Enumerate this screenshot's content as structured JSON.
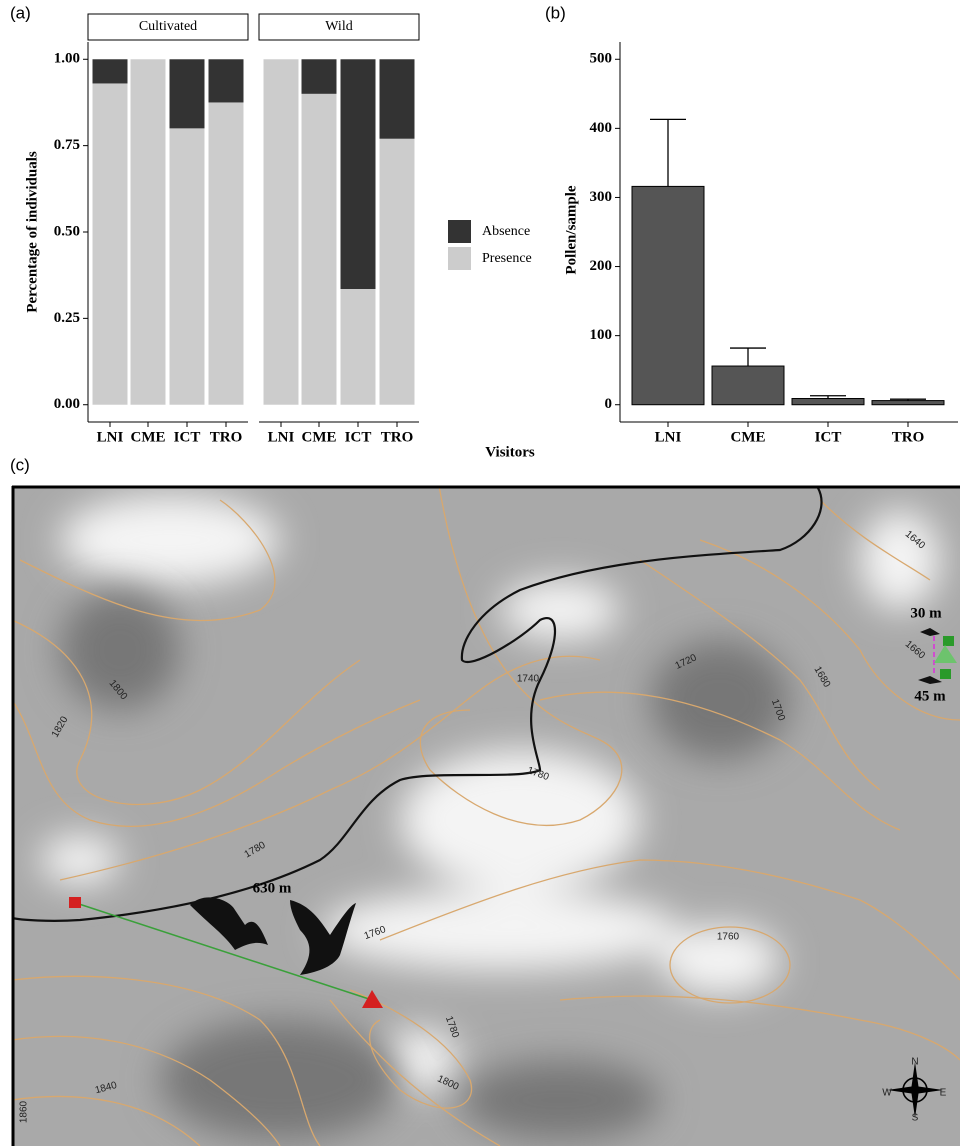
{
  "chart_data": [
    {
      "type": "stacked-bar",
      "panel_label": "(a)",
      "facets": [
        "Cultivated",
        "Wild"
      ],
      "categories": [
        [
          "LNI",
          "CME",
          "ICT",
          "TRO"
        ],
        [
          "LNI",
          "CME",
          "ICT",
          "TRO"
        ]
      ],
      "y_label": "Percentage of individuals",
      "x_label": "Visitors",
      "series": [
        {
          "name": "Absence",
          "color": "#333333",
          "values": [
            [
              0.07,
              0,
              0.2,
              0.125
            ],
            [
              0,
              0.1,
              0.665,
              0.23
            ]
          ]
        },
        {
          "name": "Presence",
          "color": "#cccccc",
          "values": [
            [
              0.93,
              1,
              0.8,
              0.875
            ],
            [
              1,
              0.9,
              0.335,
              0.77
            ]
          ]
        }
      ],
      "ylim": [
        -0.05,
        1.05
      ],
      "yticks": [
        {
          "value": 0,
          "label": "0.00"
        },
        {
          "value": 0.25,
          "label": "0.25"
        },
        {
          "value": 0.5,
          "label": "0.50"
        },
        {
          "value": 0.75,
          "label": "0.75"
        },
        {
          "value": 1,
          "label": "1.00"
        }
      ]
    },
    {
      "type": "bar",
      "panel_label": "(b)",
      "y_label": "Pollen/sample",
      "categories": [
        "LNI",
        "CME",
        "ICT",
        "TRO"
      ],
      "values": [
        316,
        56,
        9,
        6
      ],
      "errors": [
        97,
        26,
        4,
        2
      ],
      "color": "#555555",
      "ylim": [
        -25,
        525
      ],
      "yticks": [
        0,
        100,
        200,
        300,
        400,
        500
      ]
    }
  ],
  "map": {
    "panel_label": "(c)",
    "distances": [
      "630 m",
      "30 m",
      "45 m"
    ],
    "contour_labels": [
      "1800",
      "1820",
      "1780",
      "1740",
      "1720",
      "1700",
      "1680",
      "1660",
      "1640",
      "1780",
      "1760",
      "1760",
      "1780",
      "1800",
      "1840",
      "1860"
    ],
    "compass": [
      "N",
      "S",
      "E",
      "W"
    ]
  }
}
